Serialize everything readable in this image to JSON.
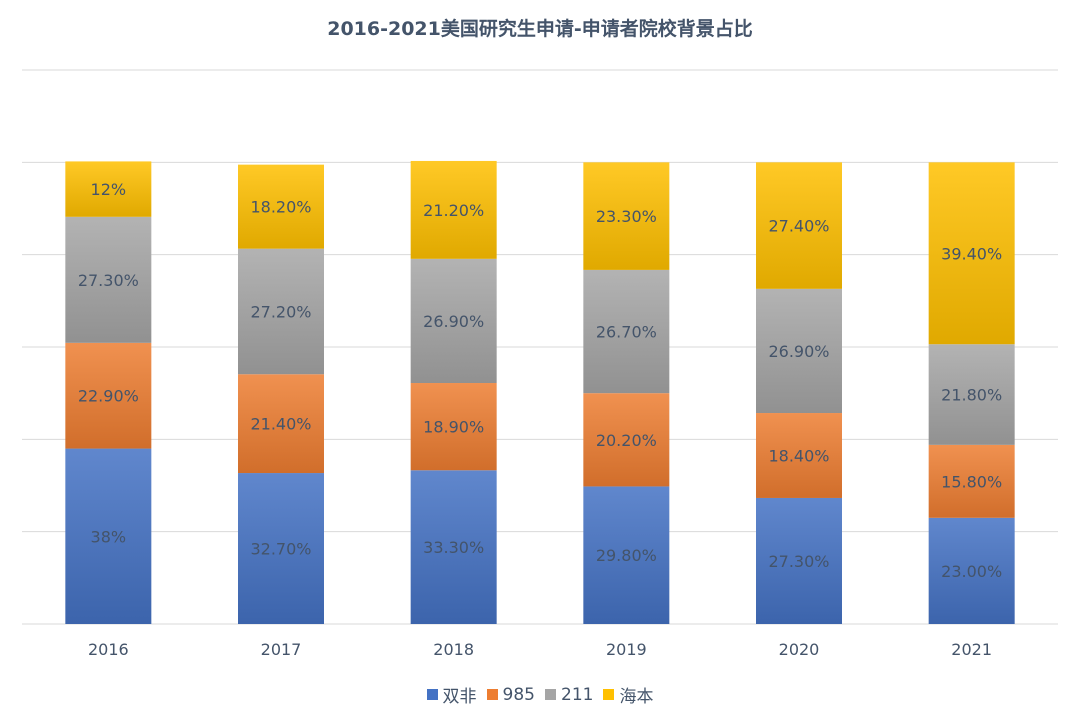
{
  "chart_data": {
    "type": "bar",
    "stacked": true,
    "title": "2016-2021美国研究生申请-申请者院校背景占比",
    "xlabel": "",
    "ylabel": "",
    "ylim": [
      0,
      120
    ],
    "grid": true,
    "legend_position": "bottom",
    "categories": [
      "2016",
      "2017",
      "2018",
      "2019",
      "2020",
      "2021"
    ],
    "series": [
      {
        "name": "双非",
        "color": "#4472c4",
        "values": [
          38,
          32.7,
          33.3,
          29.8,
          27.3,
          23.0
        ],
        "labels": [
          "38%",
          "32.70%",
          "33.30%",
          "29.80%",
          "27.30%",
          "23.00%"
        ]
      },
      {
        "name": "985",
        "color": "#ed7d31",
        "values": [
          22.9,
          21.4,
          18.9,
          20.2,
          18.4,
          15.8
        ],
        "labels": [
          "22.90%",
          "21.40%",
          "18.90%",
          "20.20%",
          "18.40%",
          "15.80%"
        ]
      },
      {
        "name": "211",
        "color": "#a5a5a5",
        "values": [
          27.3,
          27.2,
          26.9,
          26.7,
          26.9,
          21.8
        ],
        "labels": [
          "27.30%",
          "27.20%",
          "26.90%",
          "26.70%",
          "26.90%",
          "21.80%"
        ]
      },
      {
        "name": "海本",
        "color": "#ffc000",
        "values": [
          12,
          18.2,
          21.2,
          23.3,
          27.4,
          39.4
        ],
        "labels": [
          "12%",
          "18.20%",
          "21.20%",
          "23.30%",
          "27.40%",
          "39.40%"
        ]
      }
    ]
  }
}
